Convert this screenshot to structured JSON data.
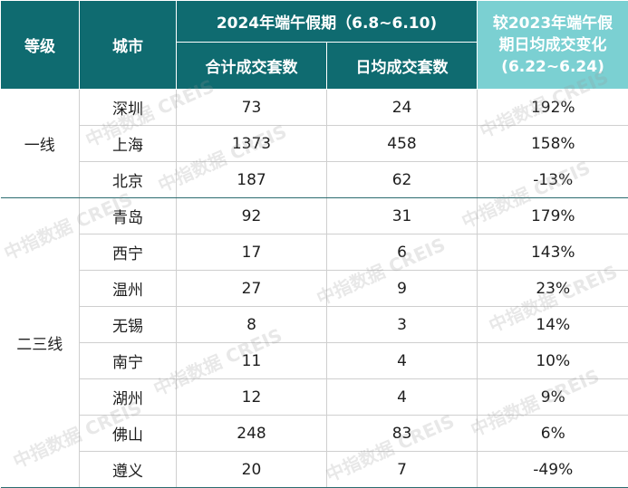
{
  "chart_data": {
    "type": "table",
    "headers": {
      "tier": "等级",
      "city": "城市",
      "holiday2024": "2024年端午假期（6.8~6.10)",
      "total_deals": "合计成交套数",
      "daily_deals": "日均成交套数",
      "change_line1": "较2023年端午假",
      "change_line2": "期日均成交变化",
      "change_line3": "(6.22~6.24)"
    },
    "tiers": [
      "一线",
      "二三线"
    ],
    "rows": [
      {
        "tier": "一线",
        "city": "深圳",
        "total": 73,
        "daily": 24,
        "change": "192%"
      },
      {
        "tier": "一线",
        "city": "上海",
        "total": 1373,
        "daily": 458,
        "change": "158%"
      },
      {
        "tier": "一线",
        "city": "北京",
        "total": 187,
        "daily": 62,
        "change": "-13%"
      },
      {
        "tier": "二三线",
        "city": "青岛",
        "total": 92,
        "daily": 31,
        "change": "179%"
      },
      {
        "tier": "二三线",
        "city": "西宁",
        "total": 17,
        "daily": 6,
        "change": "143%"
      },
      {
        "tier": "二三线",
        "city": "温州",
        "total": 27,
        "daily": 9,
        "change": "23%"
      },
      {
        "tier": "二三线",
        "city": "无锡",
        "total": 8,
        "daily": 3,
        "change": "14%"
      },
      {
        "tier": "二三线",
        "city": "南宁",
        "total": 11,
        "daily": 4,
        "change": "10%"
      },
      {
        "tier": "二三线",
        "city": "湖州",
        "total": 12,
        "daily": 4,
        "change": "9%"
      },
      {
        "tier": "二三线",
        "city": "佛山",
        "total": 248,
        "daily": 83,
        "change": "6%"
      },
      {
        "tier": "二三线",
        "city": "遵义",
        "total": 20,
        "daily": 7,
        "change": "-49%"
      }
    ]
  },
  "watermark": "中指数据 CREIS",
  "colors": {
    "header": "#0f6b70",
    "header_highlight": "#7bd0d2"
  }
}
